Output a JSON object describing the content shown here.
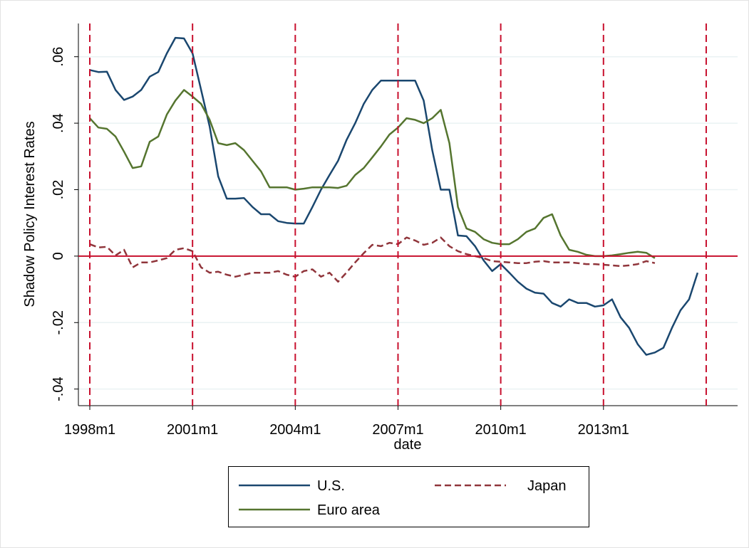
{
  "chart_data": {
    "type": "line",
    "ylabel": "Shadow Policy Interest Rates",
    "xlabel": "date",
    "x": [
      "1998m1",
      "1998m4",
      "1998m7",
      "1998m10",
      "1999m1",
      "1999m4",
      "1999m7",
      "1999m10",
      "2000m1",
      "2000m4",
      "2000m7",
      "2000m10",
      "2001m1",
      "2001m4",
      "2001m7",
      "2001m10",
      "2002m1",
      "2002m4",
      "2002m7",
      "2002m10",
      "2003m1",
      "2003m4",
      "2003m7",
      "2003m10",
      "2004m1",
      "2004m4",
      "2004m7",
      "2004m10",
      "2005m1",
      "2005m4",
      "2005m7",
      "2005m10",
      "2006m1",
      "2006m4",
      "2006m7",
      "2006m10",
      "2007m1",
      "2007m4",
      "2007m7",
      "2007m10",
      "2008m1",
      "2008m4",
      "2008m7",
      "2008m10",
      "2009m1",
      "2009m4",
      "2009m7",
      "2009m10",
      "2010m1",
      "2010m4",
      "2010m7",
      "2010m10",
      "2011m1",
      "2011m4",
      "2011m7",
      "2011m10",
      "2012m1",
      "2012m4",
      "2012m7",
      "2012m10",
      "2013m1",
      "2013m4",
      "2013m7",
      "2013m10",
      "2014m1",
      "2014m4",
      "2014m7",
      "2014m10",
      "2015m1",
      "2015m4",
      "2015m7",
      "2015m10"
    ],
    "series": [
      {
        "name": "U.S.",
        "color": "#1a476f",
        "dash": false,
        "values": [
          0.056,
          0.0554,
          0.0555,
          0.05,
          0.047,
          0.048,
          0.05,
          0.054,
          0.0554,
          0.061,
          0.0657,
          0.0655,
          0.061,
          0.05,
          0.039,
          0.024,
          0.0173,
          0.0173,
          0.0175,
          0.0148,
          0.0126,
          0.0126,
          0.0105,
          0.01,
          0.0098,
          0.0098,
          0.0148,
          0.02,
          0.0244,
          0.0287,
          0.035,
          0.04,
          0.0458,
          0.05,
          0.0528,
          0.0528,
          0.0528,
          0.0528,
          0.0528,
          0.0468,
          0.0319,
          0.02,
          0.02,
          0.0062,
          0.006,
          0.003,
          -0.0013,
          -0.0045,
          -0.0024,
          -0.005,
          -0.0077,
          -0.0098,
          -0.011,
          -0.0113,
          -0.0141,
          -0.0152,
          -0.013,
          -0.0141,
          -0.0141,
          -0.0152,
          -0.0148,
          -0.013,
          -0.0184,
          -0.0216,
          -0.0265,
          -0.0297,
          -0.029,
          -0.0276,
          -0.0216,
          -0.0163,
          -0.013,
          -0.005
        ]
      },
      {
        "name": "Japan",
        "color": "#90353b",
        "dash": true,
        "values": [
          0.0036,
          0.0026,
          0.0028,
          0.0002,
          0.0019,
          -0.0034,
          -0.0019,
          -0.0019,
          -0.0013,
          -0.0006,
          0.0019,
          0.0024,
          0.0015,
          -0.0034,
          -0.005,
          -0.0047,
          -0.0056,
          -0.0062,
          -0.0056,
          -0.005,
          -0.005,
          -0.005,
          -0.0045,
          -0.0056,
          -0.0062,
          -0.0045,
          -0.004,
          -0.0062,
          -0.005,
          -0.0077,
          -0.0049,
          -0.0019,
          0.0009,
          0.0034,
          0.003,
          0.004,
          0.0036,
          0.0056,
          0.0047,
          0.0034,
          0.004,
          0.0056,
          0.003,
          0.0015,
          0.0006,
          0,
          -0.0006,
          -0.0015,
          -0.0017,
          -0.0019,
          -0.0021,
          -0.0021,
          -0.0017,
          -0.0015,
          -0.0019,
          -0.0019,
          -0.0019,
          -0.0021,
          -0.0024,
          -0.0024,
          -0.0026,
          -0.0028,
          -0.003,
          -0.0028,
          -0.0024,
          -0.0015,
          -0.0021,
          null,
          null,
          null,
          null,
          null
        ]
      },
      {
        "name": "Euro area",
        "color": "#55752f",
        "dash": false,
        "values": [
          0.0415,
          0.0387,
          0.0383,
          0.036,
          0.0314,
          0.0265,
          0.027,
          0.0344,
          0.036,
          0.0426,
          0.0468,
          0.05,
          0.048,
          0.0458,
          0.041,
          0.034,
          0.0334,
          0.034,
          0.0319,
          0.0287,
          0.0255,
          0.0207,
          0.0207,
          0.0207,
          0.02,
          0.0203,
          0.0207,
          0.0207,
          0.0207,
          0.0205,
          0.0212,
          0.0244,
          0.0265,
          0.0297,
          0.033,
          0.0366,
          0.0387,
          0.0415,
          0.041,
          0.04,
          0.0415,
          0.044,
          0.034,
          0.0148,
          0.0083,
          0.0073,
          0.0051,
          0.004,
          0.0036,
          0.0036,
          0.0051,
          0.0073,
          0.0083,
          0.0115,
          0.0126,
          0.0062,
          0.0019,
          0.0013,
          0.0004,
          0,
          0,
          0.0002,
          0.0006,
          0.001,
          0.0013,
          0.001,
          -0.0006,
          null,
          null,
          null,
          null,
          null
        ]
      }
    ],
    "xlim": [
      "1997m9",
      "2016m12"
    ],
    "xticks": [
      "1998m1",
      "2001m1",
      "2004m1",
      "2007m1",
      "2010m1",
      "2013m1"
    ],
    "ylim": [
      -0.045,
      0.07
    ],
    "yticks": [
      {
        "value": -0.04,
        "label": "-.04"
      },
      {
        "value": -0.02,
        "label": "-.02"
      },
      0,
      {
        "value": 0.02,
        "label": ".02"
      },
      {
        "value": 0.04,
        "label": ".04"
      },
      {
        "value": 0.06,
        "label": ".06"
      }
    ],
    "xlines": [
      "1998m1",
      "2001m1",
      "2004m1",
      "2007m1",
      "2010m1",
      "2013m1",
      "2016m1"
    ],
    "xline_color": "#c8102e",
    "ylines": [
      0
    ],
    "yline_color": "#c8102e",
    "grid": true
  }
}
